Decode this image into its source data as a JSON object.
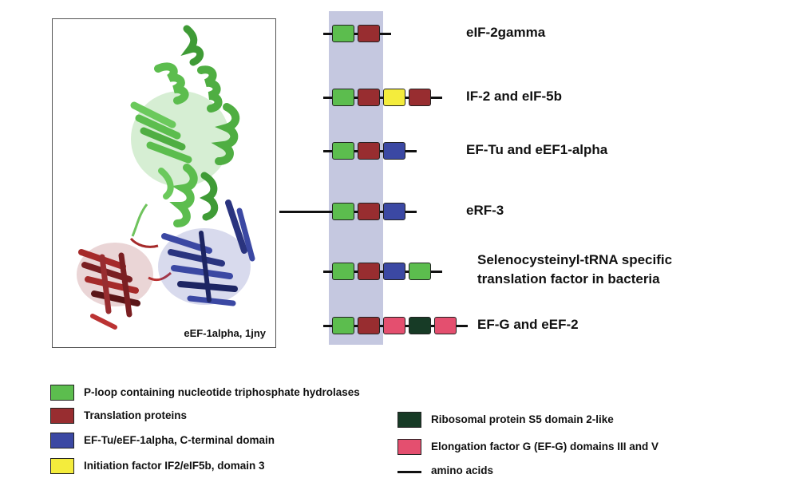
{
  "colors": {
    "p_loop": "#5cbd4e",
    "translation": "#982d30",
    "ef_tu_cterm": "#3b48a3",
    "if2_domain3": "#f4ec3c",
    "ribosomal_s5": "#173b26",
    "ef_g_iii_v": "#e44f6f",
    "highlight": "#c5c8e0"
  },
  "structure": {
    "caption": "eEF-1alpha, 1jny"
  },
  "proteins": [
    {
      "label": "eIF-2gamma",
      "domains": [
        "p_loop",
        "translation"
      ]
    },
    {
      "label": "IF-2 and eIF-5b",
      "domains": [
        "p_loop",
        "translation",
        "if2_domain3",
        "translation"
      ]
    },
    {
      "label": "EF-Tu and eEF1-alpha",
      "domains": [
        "p_loop",
        "translation",
        "ef_tu_cterm"
      ]
    },
    {
      "label": "eRF-3",
      "domains": [
        "p_loop",
        "translation",
        "ef_tu_cterm"
      ]
    },
    {
      "label": "Selenocysteinyl-tRNA specific",
      "label2": "translation factor in bacteria",
      "domains": [
        "p_loop",
        "translation",
        "ef_tu_cterm",
        "p_loop"
      ]
    },
    {
      "label": "EF-G and eEF-2",
      "domains": [
        "p_loop",
        "translation",
        "ef_g_iii_v",
        "ribosomal_s5",
        "ef_g_iii_v"
      ]
    }
  ],
  "legend": {
    "p_loop": "P-loop containing nucleotide triphosphate hydrolases",
    "translation": "Translation proteins",
    "ef_tu_cterm": "EF-Tu/eEF-1alpha, C-terminal domain",
    "if2_domain3": "Initiation factor IF2/eIF5b, domain 3",
    "ribosomal_s5": "Ribosomal protein S5 domain 2-like",
    "ef_g_iii_v": "Elongation factor G (EF-G)  domains III and V",
    "amino_acids": "amino acids"
  }
}
